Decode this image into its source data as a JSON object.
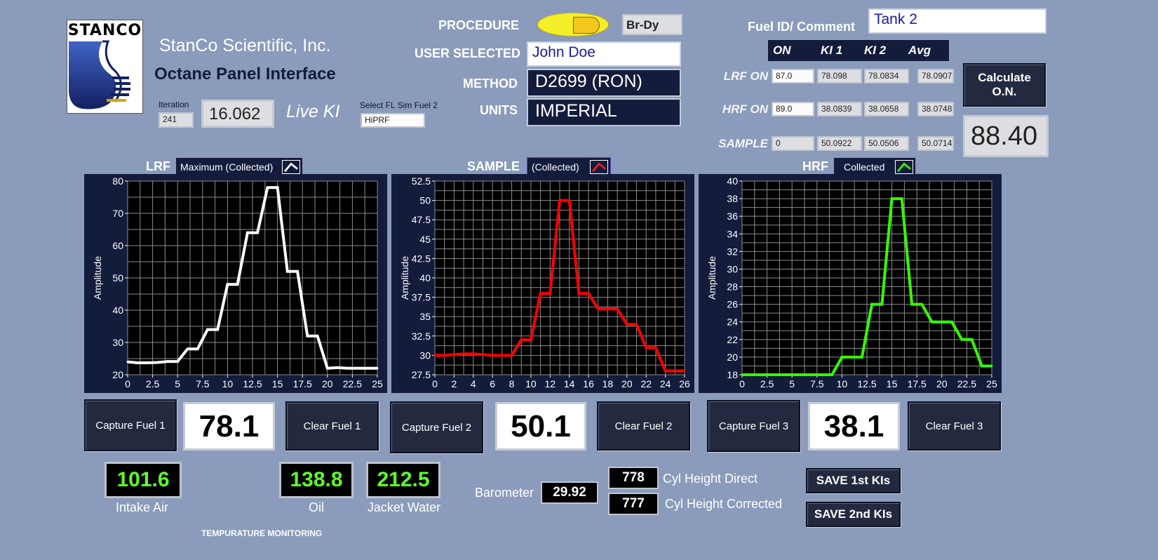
{
  "header": {
    "logo_text": "STANCO",
    "company": "StanCo Scientific, Inc.",
    "subtitle": "Octane Panel Interface",
    "iteration_label": "Iteration",
    "iteration_value": "241",
    "live_value": "16.062",
    "live_label": "Live KI",
    "sim_fuel_label": "Select FL Sim Fuel 2",
    "sim_fuel_value": "HiPRF"
  },
  "procedure": {
    "procedure_label": "PROCEDURE",
    "procedure_value": "Br-Dy",
    "user_label": "USER SELECTED",
    "user_value": "John Doe",
    "method_label": "METHOD",
    "method_value": "D2699 (RON)",
    "units_label": "UNITS",
    "units_value": "IMPERIAL"
  },
  "fuel_table": {
    "comment_label": "Fuel ID/ Comment",
    "comment_value": "Tank 2",
    "headers": [
      "ON",
      "KI 1",
      "KI 2",
      "Avg"
    ],
    "rows": [
      {
        "label": "LRF ON",
        "on": "87.0",
        "ki1": "78.098",
        "ki2": "78.0834",
        "avg": "78.0907"
      },
      {
        "label": "HRF ON",
        "on": "89.0",
        "ki1": "38.0839",
        "ki2": "38.0658",
        "avg": "38.0748"
      },
      {
        "label": "SAMPLE",
        "on": "0",
        "ki1": "50.0922",
        "ki2": "50.0506",
        "avg": "50.0714"
      }
    ],
    "calc_button": "Calculate O.N.",
    "octane_result": "88.40"
  },
  "charts": {
    "amplitude_label": "Amplitude",
    "lrf": {
      "title": "LRF",
      "mode": "Maximum (Collected)",
      "color": "#ffffff"
    },
    "sample": {
      "title": "SAMPLE",
      "mode": "(Collected)",
      "color": "#ff0000"
    },
    "hrf": {
      "title": "HRF",
      "mode": "Collected",
      "color": "#33ff00"
    }
  },
  "chart_data": [
    {
      "type": "line",
      "xlim": [
        0,
        25
      ],
      "ylim": [
        20,
        80
      ],
      "xticks": [
        0,
        2.5,
        5,
        7.5,
        10,
        12.5,
        15,
        17.5,
        20,
        22.5,
        25
      ],
      "yticks": [
        20,
        30,
        40,
        50,
        60,
        70,
        80
      ],
      "ylabel": "Amplitude",
      "grid": true,
      "x": [
        0,
        1,
        2,
        3,
        4,
        5,
        6,
        7,
        8,
        9,
        10,
        11,
        12,
        13,
        14,
        15,
        16,
        17,
        18,
        19,
        20,
        21,
        22,
        23,
        24,
        25
      ],
      "y": [
        24,
        23.7,
        23.7,
        23.8,
        24.1,
        24.1,
        28,
        28,
        34,
        34,
        48,
        48,
        64,
        64,
        78,
        78,
        52,
        52,
        32,
        32,
        22,
        22.2,
        22,
        22,
        22,
        22
      ]
    },
    {
      "type": "line",
      "xlim": [
        0,
        26
      ],
      "ylim": [
        27.5,
        52.5
      ],
      "xticks": [
        0,
        2,
        4,
        6,
        8,
        10,
        12,
        14,
        16,
        18,
        20,
        22,
        24,
        26
      ],
      "yticks": [
        27.5,
        30,
        32.5,
        35,
        37.5,
        40,
        42.5,
        45,
        47.5,
        50,
        52.5
      ],
      "ylabel": "Amplitude",
      "grid": true,
      "x": [
        0,
        1,
        2,
        3,
        4,
        5,
        6,
        7,
        8,
        9,
        10,
        11,
        12,
        13,
        14,
        15,
        16,
        17,
        18,
        19,
        20,
        21,
        22,
        23,
        24,
        25,
        26
      ],
      "y": [
        30,
        30,
        30.1,
        30.2,
        30.2,
        30.1,
        30,
        30,
        30,
        32,
        32,
        38,
        38,
        50,
        50,
        38,
        38,
        36,
        36,
        36,
        34,
        34,
        31,
        31,
        28,
        28,
        28
      ]
    },
    {
      "type": "line",
      "xlim": [
        0,
        25
      ],
      "ylim": [
        18,
        40
      ],
      "xticks": [
        0,
        2.5,
        5,
        7.5,
        10,
        12.5,
        15,
        17.5,
        20,
        22.5,
        25
      ],
      "yticks": [
        18,
        20,
        22,
        24,
        26,
        28,
        30,
        32,
        34,
        36,
        38,
        40
      ],
      "ylabel": "Amplitude",
      "grid": true,
      "x": [
        0,
        1,
        2,
        3,
        4,
        5,
        6,
        7,
        8,
        9,
        10,
        11,
        12,
        13,
        14,
        15,
        16,
        17,
        18,
        19,
        20,
        21,
        22,
        23,
        24,
        25
      ],
      "y": [
        18,
        18,
        18,
        18,
        18,
        18,
        18,
        18,
        18,
        18,
        20,
        20,
        20,
        26,
        26,
        38,
        38,
        26,
        26,
        24,
        24,
        24,
        22,
        22,
        19,
        19
      ]
    }
  ],
  "capture": {
    "capture1": "Capture Fuel 1",
    "value1": "78.1",
    "clear1": "Clear Fuel 1",
    "capture2": "Capture Fuel 2",
    "value2": "50.1",
    "clear2": "Clear Fuel 2",
    "capture3": "Capture Fuel 3",
    "value3": "38.1",
    "clear3": "Clear Fuel 3"
  },
  "temps": {
    "intake_value": "101.6",
    "intake_label": "Intake Air",
    "oil_value": "138.8",
    "oil_label": "Oil",
    "jacket_value": "212.5",
    "jacket_label": "Jacket Water",
    "section_label": "TEMPURATURE MONITORING"
  },
  "engine": {
    "baro_label": "Barometer",
    "baro_value": "29.92",
    "cyl_direct_value": "778",
    "cyl_direct_label": "Cyl Height Direct",
    "cyl_corr_value": "777",
    "cyl_corr_label": "Cyl Height Corrected",
    "save1": "SAVE 1st KIs",
    "save2": "SAVE 2nd KIs"
  }
}
